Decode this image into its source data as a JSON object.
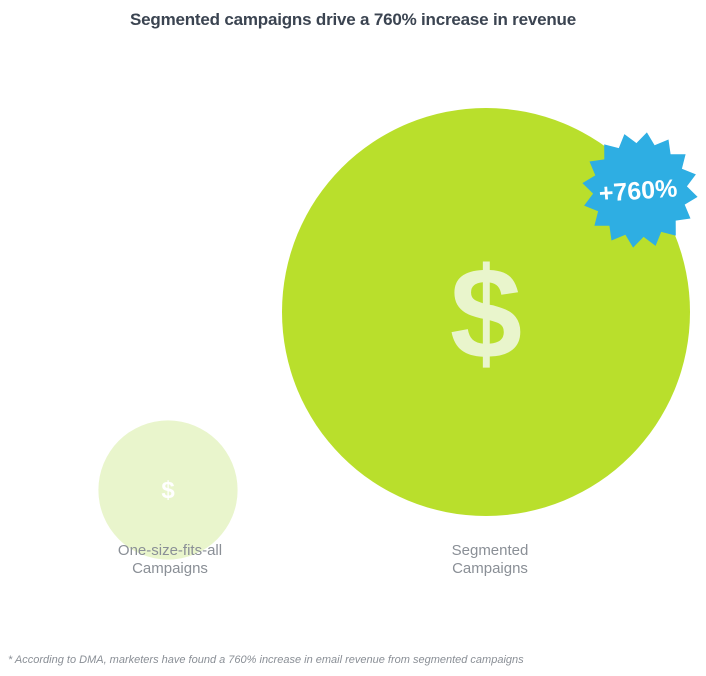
{
  "chart_data": {
    "type": "bubble",
    "title": "Segmented campaigns drive a 760% increase in revenue",
    "categories": [
      {
        "label_lines": [
          "One-size-fits-all",
          "Campaigns"
        ],
        "value": 100,
        "symbol": "$"
      },
      {
        "label_lines": [
          "Segmented",
          "Campaigns"
        ],
        "value": 860,
        "symbol": "$"
      }
    ],
    "badge": {
      "text": "+760%"
    },
    "footnote": "* According to DMA, marketers have found a 760% increase in email revenue from segmented campaigns",
    "colors": {
      "small_bubble": "#e9f5cc",
      "small_symbol": "#ffffff",
      "large_bubble": "#b9df2c",
      "large_symbol": "#e9f5cc",
      "badge": "#2eaee3",
      "badge_text": "#ffffff"
    }
  }
}
